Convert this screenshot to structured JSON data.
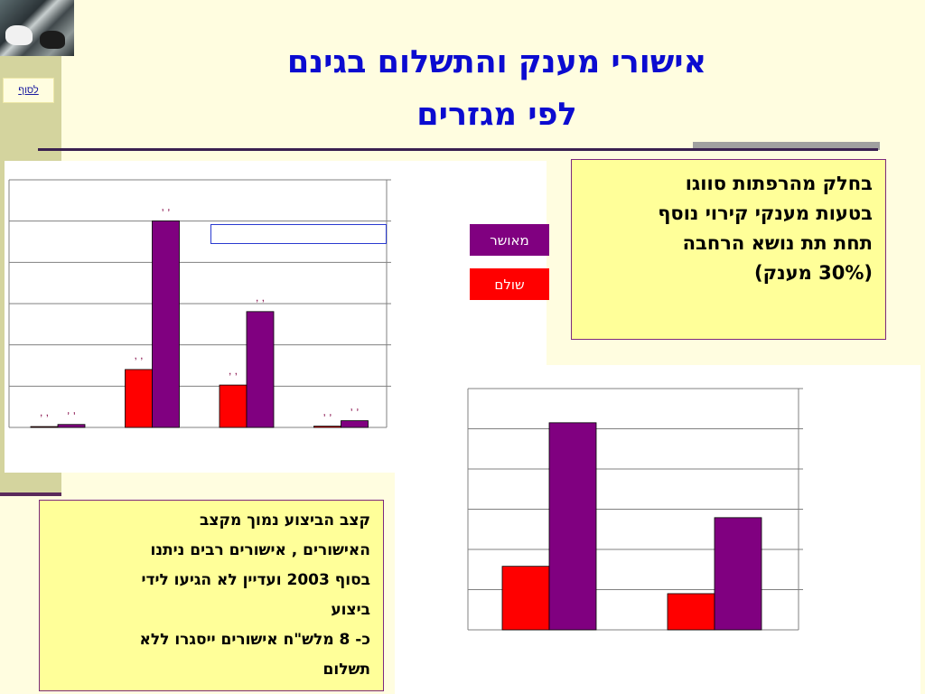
{
  "title": {
    "line1": "אישורי מענק והתשלום בגינם",
    "line2": "לפי מגזרים"
  },
  "nav": {
    "to_end_label": "לסוף"
  },
  "legend": [
    {
      "label": "מאושר",
      "color": "#800080"
    },
    {
      "label": "שולם",
      "color": "#ff0000"
    }
  ],
  "notes": {
    "top_right": [
      "בחלק מהרפתות סווגו",
      "בטעות מענקי קירוי נוסף",
      "תחת תת נושא הרחבה",
      "(30% מענק)"
    ],
    "bottom_left": [
      "קצב הביצוע  נמוך מקצב",
      "האישורים , אישורים רבים ניתנו",
      "בסוף 2003 ועדיין לא הגיעו לידי",
      "ביצוע",
      "כ- 8 מלש\"ח אישורים ייסגרו ללא",
      "תשלום"
    ]
  },
  "chart_data": [
    {
      "type": "bar",
      "categories": [
        "",
        "",
        "",
        ""
      ],
      "series": [
        {
          "name": "שולם",
          "color": "#ff0000",
          "values": [
            0.2,
            13.8,
            10.1,
            0.3
          ]
        },
        {
          "name": "מאושר",
          "color": "#800080",
          "values": [
            0.7,
            49.2,
            27.6,
            1.6
          ]
        }
      ],
      "data_labels": [
        ",   ,",
        ",   ,",
        ",   ,",
        ",   ,"
      ],
      "ylim": [
        0,
        59
      ],
      "gridlines": 6,
      "grid": true
    },
    {
      "type": "bar",
      "categories": [
        "",
        ""
      ],
      "series": [
        {
          "name": "שולם",
          "color": "#ff0000",
          "values": [
            15.8,
            9.0
          ]
        },
        {
          "name": "מאושר",
          "color": "#800080",
          "values": [
            51.5,
            27.9
          ]
        }
      ],
      "ylim": [
        0,
        60
      ],
      "gridlines": 6,
      "grid": true
    }
  ]
}
